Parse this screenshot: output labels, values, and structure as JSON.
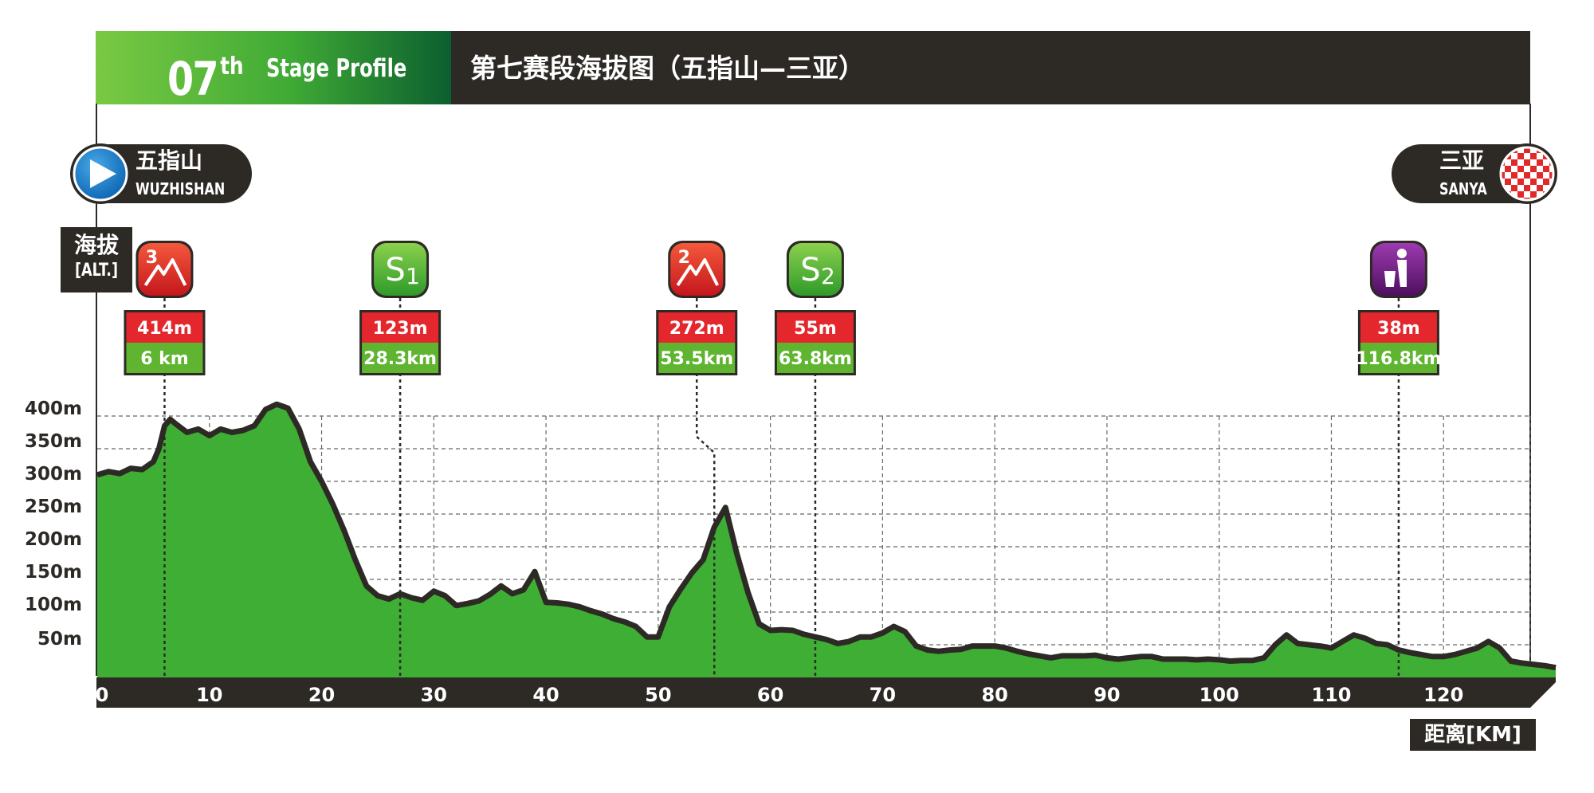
{
  "header": {
    "stage_number": "07",
    "stage_suffix": "th",
    "stage_label": "Stage Profile",
    "title": "第七赛段海拔图（五指山—三亚）"
  },
  "start": {
    "name_cn": "五指山",
    "name_en": "WUZHISHAN",
    "icon": "play-icon"
  },
  "finish": {
    "name_cn": "三亚",
    "name_en": "SANYA",
    "icon": "checkered-flag-icon"
  },
  "alt_label": {
    "cn": "海拔",
    "en": "[ALT.]"
  },
  "distance_label": "距离[KM]",
  "colors": {
    "banner_dark": "#2d2a26",
    "profile_green": "#3fae34",
    "profile_outline": "#2d2a26",
    "marker_red": "#e3272d",
    "marker_green": "#5fb530",
    "sprint_green": "#4db530",
    "feed_purple": "#6b1f7c"
  },
  "chart_data": {
    "type": "area",
    "title": "第七赛段海拔图（五指山—三亚）",
    "xlabel": "距离[KM]",
    "ylabel": "海拔",
    "xlim": [
      0,
      130
    ],
    "ylim": [
      0,
      400
    ],
    "x_ticks": [
      "0",
      "10",
      "20",
      "30",
      "40",
      "50",
      "60",
      "70",
      "80",
      "90",
      "100",
      "110",
      "120"
    ],
    "y_ticks": [
      "50m",
      "100m",
      "150m",
      "200m",
      "250m",
      "300m",
      "350m",
      "400m"
    ],
    "y_tick_values": [
      50,
      100,
      150,
      200,
      250,
      300,
      350,
      400
    ],
    "grid": true,
    "series": [
      {
        "x": [
          0,
          1,
          2,
          3,
          4,
          5,
          5.5,
          6,
          6.5,
          7,
          8,
          9,
          10,
          11,
          12,
          13,
          14,
          15,
          16,
          17,
          18,
          19,
          20,
          21,
          22,
          23,
          24,
          25,
          26,
          27,
          28,
          29,
          30,
          31,
          32,
          33,
          34,
          35,
          36,
          37,
          38,
          39,
          40,
          41,
          42,
          43,
          44,
          45,
          46,
          47,
          48,
          49,
          50,
          51,
          52,
          53,
          54,
          55,
          56,
          57,
          58,
          59,
          60,
          61,
          62,
          63,
          64,
          65,
          66,
          67,
          68,
          69,
          70,
          71,
          72,
          73,
          74,
          75,
          76,
          77,
          78,
          79,
          80,
          81,
          82,
          83,
          84,
          85,
          86,
          87,
          88,
          89,
          90,
          91,
          92,
          93,
          94,
          95,
          96,
          97,
          98,
          99,
          100,
          101,
          102,
          103,
          104,
          105,
          106,
          107,
          108,
          109,
          110,
          111,
          112,
          113,
          114,
          115,
          116,
          117,
          118,
          119,
          120,
          121,
          122,
          123,
          124,
          125,
          126,
          127,
          128,
          129,
          130
        ],
        "values": [
          310,
          315,
          312,
          320,
          318,
          330,
          350,
          385,
          395,
          388,
          375,
          380,
          370,
          380,
          375,
          378,
          385,
          410,
          418,
          412,
          380,
          330,
          300,
          265,
          225,
          180,
          140,
          125,
          120,
          128,
          122,
          118,
          132,
          125,
          110,
          113,
          117,
          127,
          140,
          128,
          134,
          162,
          115,
          114,
          112,
          108,
          102,
          97,
          90,
          85,
          78,
          62,
          62,
          108,
          135,
          160,
          180,
          230,
          260,
          190,
          130,
          82,
          72,
          73,
          72,
          66,
          62,
          58,
          52,
          55,
          62,
          62,
          68,
          78,
          70,
          48,
          42,
          40,
          42,
          43,
          48,
          48,
          48,
          45,
          40,
          36,
          33,
          30,
          33,
          33,
          33,
          34,
          30,
          28,
          30,
          32,
          32,
          28,
          28,
          28,
          27,
          28,
          27,
          25,
          26,
          26,
          30,
          50,
          65,
          52,
          50,
          48,
          45,
          55,
          65,
          60,
          52,
          50,
          42,
          38,
          35,
          32,
          32,
          35,
          40,
          45,
          55,
          45,
          25,
          22,
          20,
          18,
          15
        ]
      }
    ],
    "annotations": [
      {
        "type": "climb-cat-3",
        "altitude": "414m",
        "distance": "6 km",
        "km": 6
      },
      {
        "type": "sprint-1",
        "label": "S1",
        "altitude": "123m",
        "distance": "28.3km",
        "km": 27
      },
      {
        "type": "climb-cat-2",
        "altitude": "272m",
        "distance": "53.5km",
        "km": 55
      },
      {
        "type": "sprint-2",
        "label": "S2",
        "altitude": "55m",
        "distance": "63.8km",
        "km": 64
      },
      {
        "type": "feed-zone",
        "altitude": "38m",
        "distance": "116.8km",
        "km": 116
      }
    ]
  }
}
